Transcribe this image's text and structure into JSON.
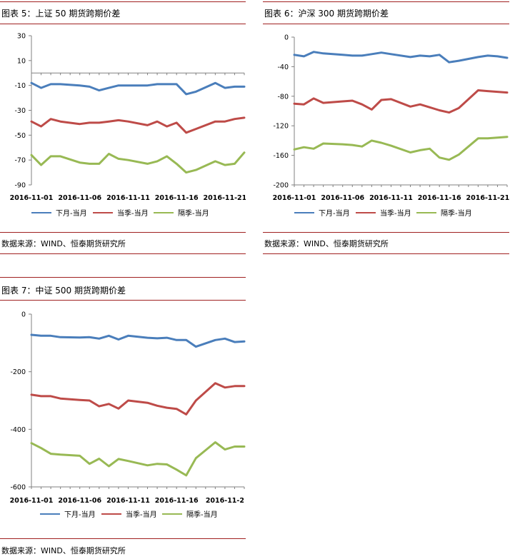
{
  "colors": {
    "s1": "#4a7ebb",
    "s2": "#be4b48",
    "s3": "#98b954",
    "rule": "#a02020"
  },
  "chart_data": [
    {
      "type": "line",
      "title": "图表 5：上证 50 期货跨期价差",
      "source": "数据来源：WIND、恒泰期货研究所",
      "xlabels": [
        "2016-11-01",
        "2016-11-06",
        "2016-11-11",
        "2016-11-16",
        "2016-11-21"
      ],
      "yticks": [
        30,
        10,
        -10,
        -30,
        -50,
        -70,
        -90
      ],
      "ylim": [
        -90,
        30
      ],
      "x_range": [
        0,
        22
      ],
      "zero_line": true,
      "series": [
        {
          "name": "下月-当月",
          "x": [
            0,
            1,
            2,
            3,
            5,
            6,
            7,
            8,
            9,
            10,
            12,
            13,
            14,
            15,
            16,
            17,
            19,
            20,
            21,
            22
          ],
          "values": [
            -8,
            -12,
            -9,
            -9,
            -10,
            -11,
            -14,
            -12,
            -10,
            -10,
            -10,
            -9,
            -9,
            -9,
            -17,
            -15,
            -8,
            -12,
            -11,
            -11
          ]
        },
        {
          "name": "当季-当月",
          "x": [
            0,
            1,
            2,
            3,
            5,
            6,
            7,
            8,
            9,
            10,
            12,
            13,
            14,
            15,
            16,
            17,
            19,
            20,
            21,
            22
          ],
          "values": [
            -39,
            -43,
            -37,
            -39,
            -41,
            -40,
            -40,
            -39,
            -38,
            -39,
            -42,
            -39,
            -43,
            -40,
            -48,
            -45,
            -39,
            -39,
            -37,
            -36
          ]
        },
        {
          "name": "隔季-当月",
          "x": [
            0,
            1,
            2,
            3,
            5,
            6,
            7,
            8,
            9,
            10,
            12,
            13,
            14,
            15,
            16,
            17,
            19,
            20,
            21,
            22
          ],
          "values": [
            -66,
            -74,
            -67,
            -67,
            -72,
            -73,
            -73,
            -65,
            -69,
            -70,
            -73,
            -71,
            -67,
            -73,
            -80,
            -78,
            -71,
            -74,
            -73,
            -64
          ]
        }
      ]
    },
    {
      "type": "line",
      "title": "图表 6：沪深 300 期货跨期价差",
      "source": "数据来源：WIND、恒泰期货研究所",
      "xlabels": [
        "2016-11-01",
        "2016-11-06",
        "2016-11-11",
        "2016-11-16",
        "2016-11-21"
      ],
      "yticks": [
        0,
        -40,
        -80,
        -120,
        -160,
        -200
      ],
      "ylim": [
        -200,
        0
      ],
      "x_range": [
        0,
        22
      ],
      "zero_line": false,
      "series": [
        {
          "name": "下月-当月",
          "x": [
            0,
            1,
            2,
            3,
            5,
            6,
            7,
            8,
            9,
            10,
            12,
            13,
            14,
            15,
            16,
            17,
            19,
            20,
            21,
            22
          ],
          "values": [
            -24,
            -26,
            -20,
            -22,
            -24,
            -25,
            -25,
            -23,
            -21,
            -23,
            -27,
            -25,
            -26,
            -24,
            -34,
            -32,
            -27,
            -25,
            -26,
            -28
          ]
        },
        {
          "name": "当季-当月",
          "x": [
            0,
            1,
            2,
            3,
            5,
            6,
            7,
            8,
            9,
            10,
            12,
            13,
            14,
            15,
            16,
            17,
            19,
            20,
            21,
            22
          ],
          "values": [
            -90,
            -91,
            -83,
            -89,
            -87,
            -86,
            -91,
            -98,
            -85,
            -84,
            -94,
            -91,
            -95,
            -99,
            -102,
            -96,
            -72,
            -73,
            -74,
            -75
          ]
        },
        {
          "name": "隔季-当月",
          "x": [
            0,
            1,
            2,
            3,
            5,
            6,
            7,
            8,
            9,
            10,
            12,
            13,
            14,
            15,
            16,
            17,
            19,
            20,
            21,
            22
          ],
          "values": [
            -152,
            -149,
            -151,
            -144,
            -145,
            -146,
            -148,
            -140,
            -143,
            -147,
            -156,
            -153,
            -151,
            -163,
            -166,
            -159,
            -137,
            -137,
            -136,
            -135
          ]
        }
      ]
    },
    {
      "type": "line",
      "title": "图表 7：中证 500 期货跨期价差",
      "source": "数据来源：WIND、恒泰期货研究所",
      "xlabels": [
        "2016-11-01",
        "2016-11-06",
        "2016-11-11",
        "2016-11-16",
        "2016-11-2"
      ],
      "yticks": [
        0,
        -200,
        -400,
        -600
      ],
      "ylim": [
        -600,
        0
      ],
      "x_range": [
        0,
        22
      ],
      "zero_line": false,
      "series": [
        {
          "name": "下月-当月",
          "x": [
            0,
            1,
            2,
            3,
            5,
            6,
            7,
            8,
            9,
            10,
            12,
            13,
            14,
            15,
            16,
            17,
            19,
            20,
            21,
            22
          ],
          "values": [
            -72,
            -75,
            -75,
            -80,
            -81,
            -80,
            -85,
            -75,
            -88,
            -75,
            -82,
            -84,
            -82,
            -90,
            -90,
            -113,
            -90,
            -85,
            -97,
            -95
          ]
        },
        {
          "name": "当季-当月",
          "x": [
            0,
            1,
            2,
            3,
            5,
            6,
            7,
            8,
            9,
            10,
            12,
            13,
            14,
            15,
            16,
            17,
            19,
            20,
            21,
            22
          ],
          "values": [
            -280,
            -285,
            -285,
            -293,
            -298,
            -300,
            -320,
            -312,
            -328,
            -300,
            -308,
            -318,
            -325,
            -329,
            -348,
            -300,
            -240,
            -255,
            -250,
            -250
          ]
        },
        {
          "name": "隔季-当月",
          "x": [
            0,
            1,
            2,
            3,
            5,
            6,
            7,
            8,
            9,
            10,
            12,
            13,
            14,
            15,
            16,
            17,
            19,
            20,
            21,
            22
          ],
          "values": [
            -448,
            -465,
            -485,
            -488,
            -492,
            -520,
            -502,
            -528,
            -503,
            -510,
            -525,
            -520,
            -522,
            -540,
            -560,
            -500,
            -445,
            -470,
            -460,
            -460
          ]
        }
      ]
    }
  ]
}
